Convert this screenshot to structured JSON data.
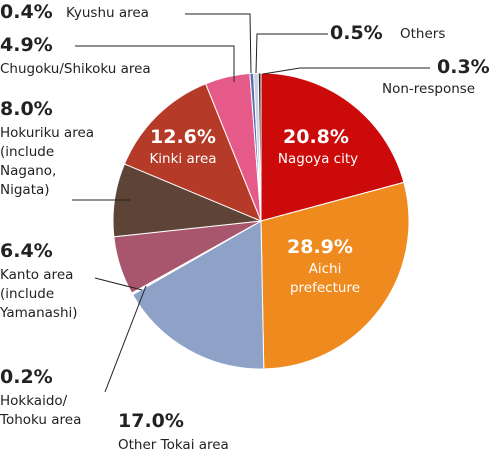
{
  "chart_data": {
    "type": "pie",
    "categories": [
      "Nagoya city",
      "Aichi\nprefecture",
      "Other Tokai area",
      "Hokkaido/\nTohoku area",
      "Kanto area\n(include\nYamanashi)",
      "Hokuriku area\n(include\nNagano,\nNigata)",
      "Kinki area",
      "Chugoku/Shikoku area",
      "Kyushu area",
      "Others",
      "Non-response"
    ],
    "values": [
      20.8,
      28.9,
      17.0,
      0.2,
      6.4,
      8.0,
      12.6,
      4.9,
      0.4,
      0.5,
      0.3
    ],
    "value_labels": [
      "20.8%",
      "28.9%",
      "17.0%",
      "0.2%",
      "6.4%",
      "8.0%",
      "12.6%",
      "4.9%",
      "0.4%",
      "0.5%",
      "0.3%"
    ],
    "colors": [
      "#cc0a0a",
      "#ef8a1f",
      "#8ea2c8",
      "#ffffff",
      "#a8566e",
      "#5e4436",
      "#b53a28",
      "#e65a8a",
      "#5b6db0",
      "#c9d1e3",
      "#2e2e2e"
    ]
  }
}
